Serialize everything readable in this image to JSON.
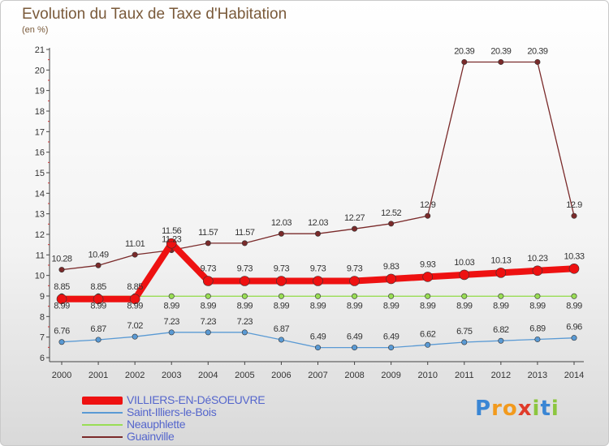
{
  "title": "Evolution du Taux de Taxe d'Habitation",
  "subtitle": "(en %)",
  "logo": {
    "text": "Proxiti"
  },
  "chart_data": {
    "type": "line",
    "x": [
      "2000",
      "2001",
      "2002",
      "2003",
      "2004",
      "2005",
      "2006",
      "2007",
      "2008",
      "2009",
      "2010",
      "2011",
      "2012",
      "2013",
      "2014"
    ],
    "ylim": [
      6,
      21
    ],
    "yticks": [
      6,
      7,
      8,
      9,
      10,
      11,
      12,
      13,
      14,
      15,
      16,
      17,
      18,
      19,
      20,
      21
    ],
    "grid": false,
    "legend_position": "bottom-left",
    "series": [
      {
        "name": "Guainville",
        "color": "#7a2a2a",
        "values": [
          10.28,
          10.49,
          11.01,
          11.23,
          11.57,
          11.57,
          12.03,
          12.03,
          12.27,
          12.52,
          12.9,
          20.39,
          20.39,
          20.39,
          12.9
        ],
        "labels": [
          "10.28",
          "10.49",
          "11.01",
          "11.23",
          "11.57",
          "11.57",
          "12.03",
          "12.03",
          "12.27",
          "12.52",
          "12.9",
          "20.39",
          "20.39",
          "20.39",
          "12.9"
        ]
      },
      {
        "name": "Neauphlette",
        "color": "#99dd55",
        "values": [
          8.99,
          8.99,
          8.99,
          8.99,
          8.99,
          8.99,
          8.99,
          8.99,
          8.99,
          8.99,
          8.99,
          8.99,
          8.99,
          8.99,
          8.99
        ],
        "labels": [
          "8.99",
          "8.99",
          "8.99",
          "8.99",
          "8.99",
          "8.99",
          "8.99",
          "8.99",
          "8.99",
          "8.99",
          "8.99",
          "8.99",
          "8.99",
          "8.99",
          "8.99"
        ]
      },
      {
        "name": "Saint-Illiers-le-Bois",
        "color": "#5a9ad4",
        "values": [
          6.76,
          6.87,
          7.02,
          7.23,
          7.23,
          7.23,
          6.87,
          6.49,
          6.49,
          6.49,
          6.62,
          6.75,
          6.82,
          6.89,
          6.96
        ],
        "labels": [
          "6.76",
          "6.87",
          "7.02",
          "7.23",
          "7.23",
          "7.23",
          "6.87",
          "6.49",
          "6.49",
          "6.49",
          "6.62",
          "6.75",
          "6.82",
          "6.89",
          "6.96"
        ]
      },
      {
        "name": "VILLIERS-EN-DéSOEUVRE",
        "color": "#ee1111",
        "values": [
          8.85,
          8.85,
          8.85,
          11.56,
          9.73,
          9.73,
          9.73,
          9.73,
          9.73,
          9.83,
          9.93,
          10.03,
          10.13,
          10.23,
          10.33
        ],
        "labels": [
          "8.85",
          "8.85",
          "8.85",
          "11.56",
          "9.73",
          "9.73",
          "9.73",
          "9.73",
          "9.73",
          "9.83",
          "9.93",
          "10.03",
          "10.13",
          "10.23",
          "10.33"
        ]
      }
    ],
    "legend_order": [
      "VILLIERS-EN-DéSOEUVRE",
      "Saint-Illiers-le-Bois",
      "Neauphlette",
      "Guainville"
    ]
  }
}
